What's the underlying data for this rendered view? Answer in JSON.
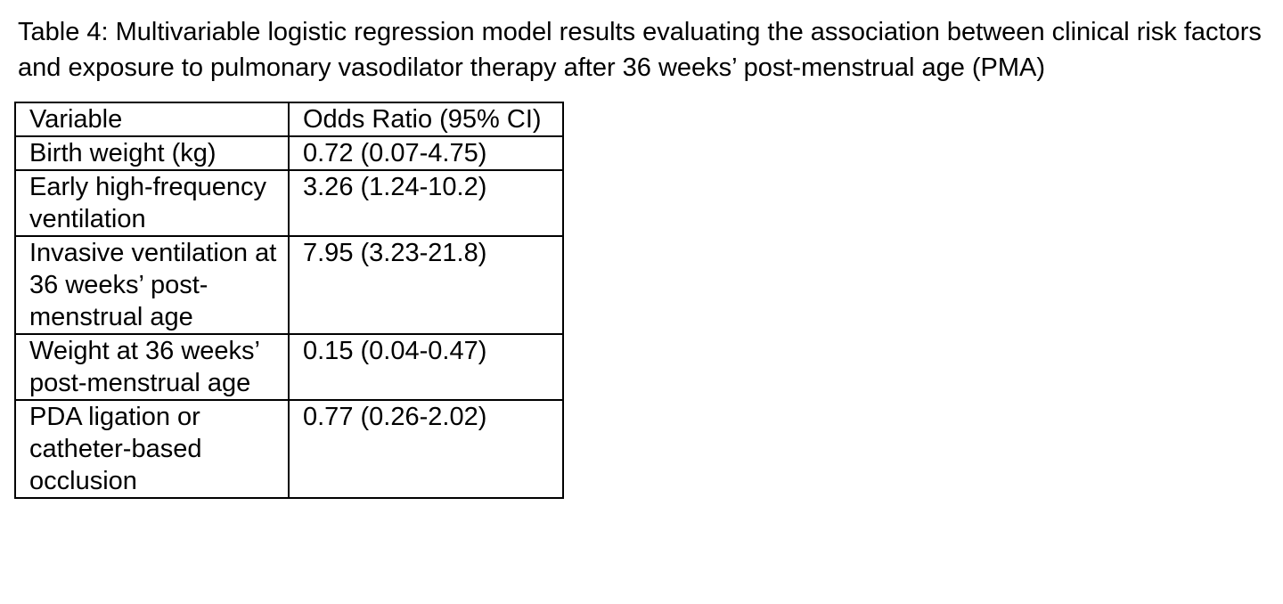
{
  "title": "Table 4: Multivariable logistic regression model results evaluating the association between clinical risk factors and exposure to pulmonary vasodilator therapy after 36 weeks’ post-menstrual age (PMA)",
  "table": {
    "header": [
      "Variable",
      "Odds Ratio (95% CI)"
    ],
    "rows": [
      [
        "Birth weight (kg)",
        "0.72 (0.07-4.75)"
      ],
      [
        "Early high-frequency ventilation",
        "3.26 (1.24-10.2)"
      ],
      [
        "Invasive ventilation at 36 weeks’ post-menstrual age",
        "7.95 (3.23-21.8)"
      ],
      [
        "Weight at 36 weeks’ post-menstrual age",
        "0.15 (0.04-0.47)"
      ],
      [
        "PDA ligation or catheter-based occlusion",
        "0.77 (0.26-2.02)"
      ]
    ]
  }
}
